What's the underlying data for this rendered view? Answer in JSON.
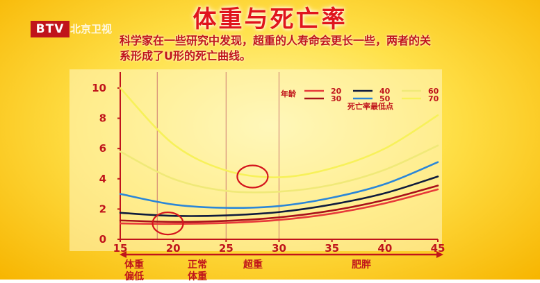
{
  "header": {
    "channel_logo": "BTV",
    "channel_name": "北京卫视",
    "title": "体重与死亡率",
    "subtitle": "科学家在一些研究中发现，超重的人寿命会更长一些，两者的关系形成了U形的死亡曲线。"
  },
  "bottom_labels": [
    {
      "text": "体重偏低"
    },
    {
      "text": "正常体重"
    },
    {
      "text": "超重"
    },
    {
      "text": "肥胖"
    }
  ],
  "chart_data": {
    "type": "line",
    "x_ticks": [
      15,
      20,
      25,
      30,
      35,
      40,
      45
    ],
    "y_ticks": [
      0,
      2,
      4,
      6,
      8,
      10
    ],
    "xlim": [
      15,
      45
    ],
    "ylim": [
      0,
      10.5
    ],
    "vertical_guides": [
      18.5,
      25,
      30
    ],
    "legend": {
      "age_label": "年龄",
      "min_label": "死亡率最低点",
      "position": "top-right"
    },
    "series": [
      {
        "name": "20",
        "color": "#e83a3a",
        "x": [
          15,
          20,
          25,
          30,
          35,
          40,
          45
        ],
        "values": [
          1.05,
          1.02,
          1.08,
          1.28,
          1.7,
          2.38,
          3.3
        ]
      },
      {
        "name": "30",
        "color": "#a8101a",
        "x": [
          15,
          20,
          25,
          30,
          35,
          40,
          45
        ],
        "values": [
          1.25,
          1.15,
          1.22,
          1.45,
          1.9,
          2.6,
          3.55
        ]
      },
      {
        "name": "40",
        "color": "#0e1a3c",
        "x": [
          15,
          20,
          25,
          30,
          35,
          40,
          45
        ],
        "values": [
          1.75,
          1.55,
          1.58,
          1.8,
          2.3,
          3.05,
          4.15
        ]
      },
      {
        "name": "50",
        "color": "#2a86d8",
        "x": [
          15,
          20,
          25,
          30,
          35,
          40,
          45
        ],
        "values": [
          3.0,
          2.3,
          2.08,
          2.2,
          2.75,
          3.65,
          5.1
        ]
      },
      {
        "name": "60",
        "color": "#f0e978",
        "x": [
          15,
          20,
          25,
          30,
          35,
          40,
          45
        ],
        "values": [
          5.8,
          4.0,
          3.2,
          3.15,
          3.6,
          4.6,
          6.2
        ]
      },
      {
        "name": "70",
        "color": "#f7f15a",
        "x": [
          15,
          20,
          25,
          30,
          35,
          40,
          45
        ],
        "values": [
          10.0,
          6.3,
          4.55,
          4.1,
          4.7,
          6.0,
          8.2
        ]
      }
    ],
    "highlights": [
      {
        "x": 19.5,
        "y": 1.05
      },
      {
        "x": 27.5,
        "y": 4.15
      }
    ]
  }
}
